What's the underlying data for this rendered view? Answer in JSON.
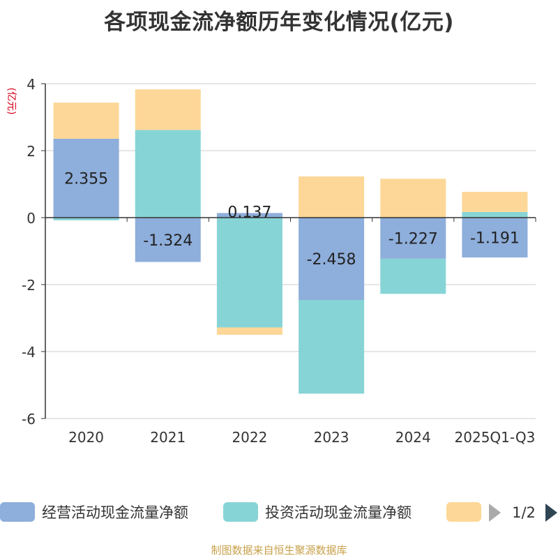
{
  "chart_data": {
    "type": "bar",
    "stacked": true,
    "title": "各项现金流净额历年变化情况(亿元)",
    "ylabel": "(亿元)",
    "xlabel": "",
    "ylim": [
      -6,
      4
    ],
    "yticks": [
      4,
      2,
      0,
      -2,
      -4,
      -6
    ],
    "grid": true,
    "categories": [
      "2020",
      "2021",
      "2022",
      "2023",
      "2024",
      "2025Q1-Q3"
    ],
    "series": [
      {
        "name": "经营活动现金流量净额",
        "color": "#8eaedb",
        "values": [
          2.355,
          -1.324,
          0.137,
          -2.458,
          -1.227,
          -1.191
        ],
        "labels": [
          "2.355",
          "-1.324",
          "0.137",
          "-2.458",
          "-1.227",
          "-1.191"
        ]
      },
      {
        "name": "投资活动现金流量净额",
        "color": "#87d4d6",
        "values": [
          -0.08,
          2.62,
          -3.28,
          -2.8,
          -1.05,
          0.17
        ]
      },
      {
        "name": "",
        "color": "#fdd797",
        "values": [
          1.08,
          1.21,
          -0.22,
          1.23,
          1.16,
          0.6
        ]
      }
    ]
  },
  "legend": {
    "items": [
      {
        "label": "经营活动现金流量净额",
        "color": "#8eaedb"
      },
      {
        "label": "投资活动现金流量净额",
        "color": "#87d4d6"
      },
      {
        "label": "",
        "color": "#fdd797"
      }
    ],
    "page_indicator": "1/2"
  },
  "footer": "制图数据来自恒生聚源数据库"
}
